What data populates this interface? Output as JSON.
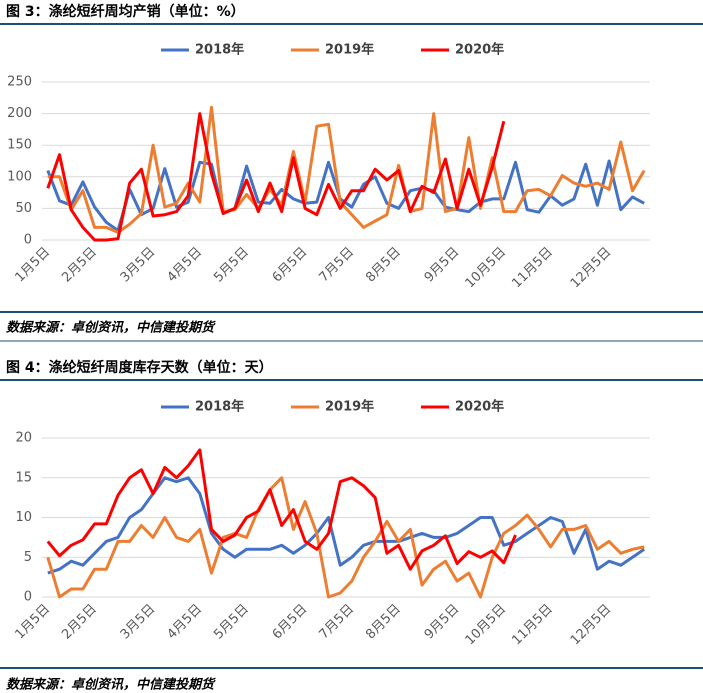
{
  "chart_data": [
    {
      "type": "line",
      "title": "图 3：涤纶短纤周均产销（单位：%）",
      "source": "数据来源：卓创资讯，中信建投期货",
      "categories": [
        "1月5日",
        null,
        null,
        null,
        "2月5日",
        null,
        null,
        null,
        null,
        "3月5日",
        null,
        null,
        null,
        "4月5日",
        null,
        null,
        null,
        "5月5日",
        null,
        null,
        null,
        null,
        "6月5日",
        null,
        null,
        null,
        "7月5日",
        null,
        null,
        null,
        "8月5日",
        null,
        null,
        null,
        null,
        "9月5日",
        null,
        null,
        null,
        "10月5日",
        null,
        null,
        null,
        "11月5日",
        null,
        null,
        null,
        null,
        "12月5日",
        null,
        null,
        null
      ],
      "series": [
        {
          "name": "2018年",
          "color": "#4472c4",
          "values": [
            110,
            62,
            55,
            92,
            52,
            28,
            15,
            80,
            40,
            50,
            113,
            52,
            60,
            123,
            120,
            42,
            50,
            117,
            60,
            58,
            80,
            65,
            58,
            60,
            123,
            65,
            52,
            88,
            100,
            58,
            50,
            78,
            82,
            78,
            52,
            48,
            45,
            60,
            65,
            65,
            123,
            48,
            44,
            70,
            55,
            65,
            120,
            55,
            125,
            48,
            68,
            58
          ]
        },
        {
          "name": "2019年",
          "color": "#ed7d31",
          "values": [
            100,
            100,
            48,
            78,
            20,
            20,
            12,
            25,
            42,
            150,
            52,
            58,
            90,
            60,
            210,
            45,
            48,
            72,
            50,
            80,
            55,
            140,
            60,
            180,
            183,
            60,
            40,
            20,
            30,
            40,
            118,
            45,
            50,
            200,
            45,
            50,
            162,
            50,
            130,
            45,
            45,
            78,
            80,
            70,
            102,
            90,
            85,
            90,
            80,
            155,
            78,
            110
          ]
        },
        {
          "name": "2020年",
          "color": "#ff0000",
          "values": [
            82,
            135,
            48,
            20,
            0,
            0,
            2,
            90,
            112,
            38,
            40,
            45,
            70,
            200,
            105,
            42,
            50,
            95,
            45,
            90,
            45,
            130,
            50,
            40,
            88,
            50,
            78,
            78,
            112,
            95,
            110,
            45,
            85,
            75,
            128,
            50,
            112,
            55,
            115,
            188,
            null,
            null,
            null,
            null,
            null,
            null,
            null,
            null,
            null,
            null,
            null,
            null
          ]
        }
      ],
      "ylim": [
        0,
        250
      ],
      "yticks": [
        0,
        50,
        100,
        150,
        200,
        250
      ],
      "grid": true,
      "legend": "top"
    },
    {
      "type": "line",
      "title": "图 4：涤纶短纤周度库存天数（单位：天）",
      "source": "数据来源：卓创资讯，中信建投期货",
      "categories": [
        "1月5日",
        null,
        null,
        null,
        "2月5日",
        null,
        null,
        null,
        null,
        "3月5日",
        null,
        null,
        null,
        "4月5日",
        null,
        null,
        null,
        "5月5日",
        null,
        null,
        null,
        null,
        "6月5日",
        null,
        null,
        null,
        "7月5日",
        null,
        null,
        null,
        "8月5日",
        null,
        null,
        null,
        null,
        "9月5日",
        null,
        null,
        null,
        "10月5日",
        null,
        null,
        null,
        "11月5日",
        null,
        null,
        null,
        null,
        "12月5日",
        null,
        null,
        null
      ],
      "series": [
        {
          "name": "2018年",
          "color": "#4472c4",
          "values": [
            3,
            3.5,
            4.5,
            4,
            5.5,
            7,
            7.5,
            10,
            11,
            13,
            15,
            14.5,
            15,
            13,
            8,
            6,
            5,
            6,
            6,
            6,
            6.5,
            5.5,
            6.5,
            8,
            10,
            4,
            5,
            6.5,
            7,
            7,
            7,
            7.5,
            8,
            7.5,
            7.5,
            8,
            9,
            10,
            10,
            6.5,
            7,
            8,
            9,
            10,
            9.5,
            5.5,
            8.5,
            3.5,
            4.5,
            4,
            5,
            6
          ]
        },
        {
          "name": "2019年",
          "color": "#ed7d31",
          "values": [
            5,
            0,
            1,
            1,
            3.5,
            3.5,
            7,
            7,
            9,
            7.5,
            10,
            7.5,
            7,
            8.5,
            3,
            7.5,
            8,
            7.5,
            11,
            13.5,
            15,
            8.5,
            12,
            8,
            0,
            0.5,
            2,
            5,
            7,
            9.5,
            7,
            8.5,
            1.5,
            3.5,
            4.5,
            2,
            3,
            0,
            5,
            8,
            9,
            10.3,
            8.5,
            6.3,
            8.5,
            8.5,
            9,
            6,
            7,
            5.5,
            6,
            6.3
          ]
        },
        {
          "name": "2020年",
          "color": "#ff0000",
          "values": [
            7,
            5.2,
            6.5,
            7.2,
            9.2,
            9.2,
            12.8,
            15,
            16,
            13,
            16.3,
            15,
            16.5,
            18.5,
            8.5,
            7,
            7.8,
            10,
            10.8,
            13.5,
            9,
            11,
            7,
            6,
            8,
            14.5,
            15,
            14,
            12.5,
            5.5,
            6.5,
            3.5,
            5.8,
            6.5,
            7.7,
            4.2,
            5.7,
            5,
            5.8,
            4.3,
            7.8,
            null,
            null,
            null,
            null,
            null,
            null,
            null,
            null,
            null,
            null,
            null
          ]
        }
      ],
      "ylim": [
        0,
        20
      ],
      "yticks": [
        0,
        5,
        10,
        15,
        20
      ],
      "grid": true,
      "legend": "top"
    }
  ]
}
